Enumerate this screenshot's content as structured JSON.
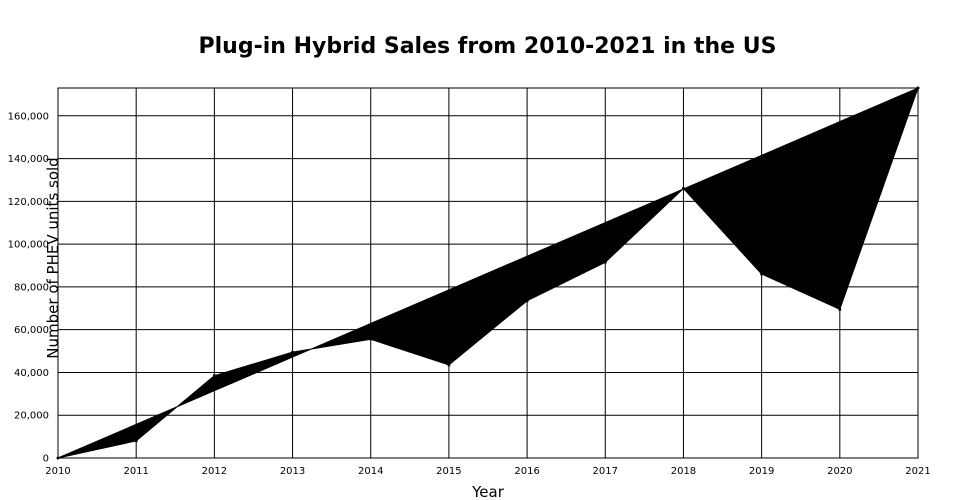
{
  "chart_data": {
    "type": "area",
    "title": "Plug-in Hybrid Sales from 2010-2021 in the US",
    "xlabel": "Year",
    "ylabel": "Number of PHEV units sold",
    "x": [
      2010,
      2011,
      2012,
      2013,
      2014,
      2015,
      2016,
      2017,
      2018,
      2019,
      2020,
      2021
    ],
    "x_tick_labels": [
      "2010",
      "2011",
      "2012",
      "2013",
      "2014",
      "2015",
      "2016",
      "2017",
      "2018",
      "2019",
      "2020",
      "2021"
    ],
    "series": [
      {
        "values": [
          0,
          8000,
          38500,
          49500,
          55500,
          43500,
          73500,
          91500,
          126000,
          86000,
          69500,
          173000
        ]
      }
    ],
    "trend_line": {
      "start": [
        2010,
        0
      ],
      "end": [
        2021,
        173000
      ]
    },
    "xlim": [
      2010,
      2021
    ],
    "ylim": [
      0,
      173000
    ],
    "y_ticks": [
      0,
      20000,
      40000,
      60000,
      80000,
      100000,
      120000,
      140000,
      160000
    ],
    "y_tick_labels": [
      "0",
      "20,000",
      "40,000",
      "60,000",
      "80,000",
      "100,000",
      "120,000",
      "140,000",
      "160,000"
    ],
    "grid": true,
    "fill_color": "#000000",
    "grid_color": "#000000"
  }
}
